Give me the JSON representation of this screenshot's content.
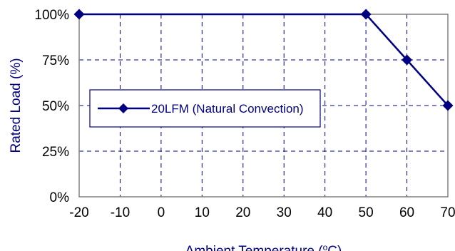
{
  "chart_data": {
    "type": "line",
    "title": "",
    "xlabel": "Ambient Temperature (°C)",
    "ylabel": "Rated Load (%)",
    "xlim": [
      -20,
      70
    ],
    "ylim": [
      0,
      100
    ],
    "x_ticks": [
      "-20",
      "-10",
      "0",
      "10",
      "20",
      "30",
      "40",
      "50",
      "60",
      "70"
    ],
    "y_ticks": [
      "0%",
      "25%",
      "50%",
      "75%",
      "100%"
    ],
    "grid": true,
    "legend_position": "center-left",
    "series": [
      {
        "name": "20LFM (Natural Convection)",
        "color": "#000080",
        "marker": "diamond",
        "points": [
          {
            "x": -20,
            "y": 100
          },
          {
            "x": 50,
            "y": 100
          },
          {
            "x": 60,
            "y": 75
          },
          {
            "x": 70,
            "y": 50
          }
        ]
      }
    ]
  }
}
